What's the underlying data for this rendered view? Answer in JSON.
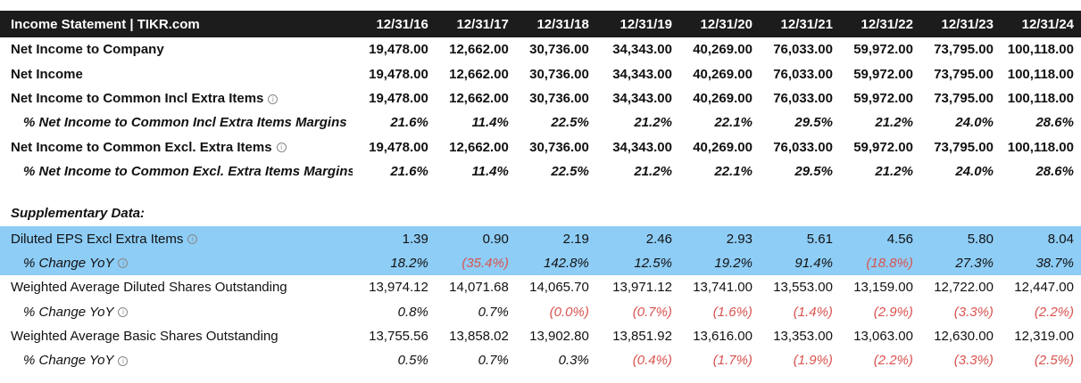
{
  "header": {
    "title": "Income Statement | TIKR.com",
    "periods": [
      "12/31/16",
      "12/31/17",
      "12/31/18",
      "12/31/19",
      "12/31/20",
      "12/31/21",
      "12/31/22",
      "12/31/23",
      "12/31/24"
    ]
  },
  "rows": {
    "net_income_company": {
      "label": "Net Income to Company",
      "values": [
        "19,478.00",
        "12,662.00",
        "30,736.00",
        "34,343.00",
        "40,269.00",
        "76,033.00",
        "59,972.00",
        "73,795.00",
        "100,118.00"
      ]
    },
    "net_income": {
      "label": "Net Income",
      "values": [
        "19,478.00",
        "12,662.00",
        "30,736.00",
        "34,343.00",
        "40,269.00",
        "76,033.00",
        "59,972.00",
        "73,795.00",
        "100,118.00"
      ]
    },
    "ni_common_incl": {
      "label": "Net Income to Common Incl Extra Items",
      "values": [
        "19,478.00",
        "12,662.00",
        "30,736.00",
        "34,343.00",
        "40,269.00",
        "76,033.00",
        "59,972.00",
        "73,795.00",
        "100,118.00"
      ]
    },
    "ni_common_incl_margin": {
      "label": "% Net Income to Common Incl Extra Items Margins",
      "values": [
        "21.6%",
        "11.4%",
        "22.5%",
        "21.2%",
        "22.1%",
        "29.5%",
        "21.2%",
        "24.0%",
        "28.6%"
      ]
    },
    "ni_common_excl": {
      "label": "Net Income to Common Excl. Extra Items",
      "values": [
        "19,478.00",
        "12,662.00",
        "30,736.00",
        "34,343.00",
        "40,269.00",
        "76,033.00",
        "59,972.00",
        "73,795.00",
        "100,118.00"
      ]
    },
    "ni_common_excl_margin": {
      "label": "% Net Income to Common Excl. Extra Items Margins",
      "values": [
        "21.6%",
        "11.4%",
        "22.5%",
        "21.2%",
        "22.1%",
        "29.5%",
        "21.2%",
        "24.0%",
        "28.6%"
      ]
    },
    "supplementary": {
      "label": "Supplementary Data:"
    },
    "diluted_eps": {
      "label": "Diluted EPS Excl Extra Items",
      "values": [
        "1.39",
        "0.90",
        "2.19",
        "2.46",
        "2.93",
        "5.61",
        "4.56",
        "5.80",
        "8.04"
      ]
    },
    "diluted_eps_yoy": {
      "label": "% Change YoY",
      "values": [
        "18.2%",
        "(35.4%)",
        "142.8%",
        "12.5%",
        "19.2%",
        "91.4%",
        "(18.8%)",
        "27.3%",
        "38.7%"
      ]
    },
    "wa_diluted": {
      "label": "Weighted Average Diluted Shares Outstanding",
      "values": [
        "13,974.12",
        "14,071.68",
        "14,065.70",
        "13,971.12",
        "13,741.00",
        "13,553.00",
        "13,159.00",
        "12,722.00",
        "12,447.00"
      ]
    },
    "wa_diluted_yoy": {
      "label": "% Change YoY",
      "values": [
        "0.8%",
        "0.7%",
        "(0.0%)",
        "(0.7%)",
        "(1.6%)",
        "(1.4%)",
        "(2.9%)",
        "(3.3%)",
        "(2.2%)"
      ]
    },
    "wa_basic": {
      "label": "Weighted Average Basic Shares Outstanding",
      "values": [
        "13,755.56",
        "13,858.02",
        "13,902.80",
        "13,851.92",
        "13,616.00",
        "13,353.00",
        "13,063.00",
        "12,630.00",
        "12,319.00"
      ]
    },
    "wa_basic_yoy": {
      "label": "% Change YoY",
      "values": [
        "0.5%",
        "0.7%",
        "0.3%",
        "(0.4%)",
        "(1.7%)",
        "(1.9%)",
        "(2.2%)",
        "(3.3%)",
        "(2.5%)"
      ]
    }
  },
  "colors": {
    "header_bg": "#1c1c1c",
    "highlight": "#8ecdf6",
    "negative": "#d9534f"
  },
  "icons": {
    "info": "info-circle-icon"
  }
}
